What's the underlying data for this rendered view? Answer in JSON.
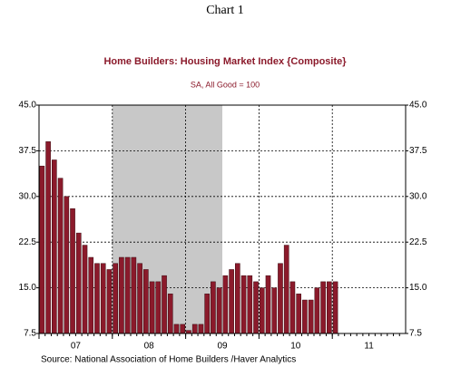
{
  "chart_data": {
    "type": "bar",
    "heading": "Chart 1",
    "title": "Home Builders: Housing Market Index {Composite}",
    "subtitle": "SA, All Good = 100",
    "source": "Source:  National Association of Home Builders /Haver Analytics",
    "categories": [
      null,
      null,
      null,
      null,
      null,
      null,
      null,
      null,
      null,
      null,
      null,
      null,
      null,
      null,
      null,
      null,
      null,
      null,
      null,
      null,
      null,
      null,
      null,
      null,
      null,
      null,
      null,
      null,
      null,
      null,
      null,
      null,
      null,
      null,
      null,
      null,
      null,
      null,
      null,
      null,
      null,
      null,
      null,
      null,
      null,
      null,
      null,
      null,
      null
    ],
    "values": [
      35,
      39,
      36,
      33,
      30,
      28,
      24,
      22,
      20,
      19,
      19,
      18,
      19,
      20,
      20,
      20,
      19,
      18,
      16,
      16,
      17,
      14,
      9,
      9,
      8,
      9,
      9,
      14,
      16,
      15,
      17,
      18,
      19,
      17,
      17,
      16,
      15,
      17,
      15,
      19,
      22,
      16,
      14,
      13,
      13,
      15,
      16,
      16,
      16
    ],
    "year_labels": [
      "07",
      "08",
      "09",
      "10",
      "11"
    ],
    "color": "#8b1a2b",
    "shade_bars": [
      12,
      29
    ],
    "ylim": [
      7.5,
      45
    ],
    "yticks": [
      7.5,
      {
        "value": 15,
        "label": "15.0"
      },
      22.5,
      {
        "value": 30,
        "label": "30.0"
      },
      37.5,
      {
        "value": 45,
        "label": "45.0"
      }
    ],
    "grid": true
  }
}
